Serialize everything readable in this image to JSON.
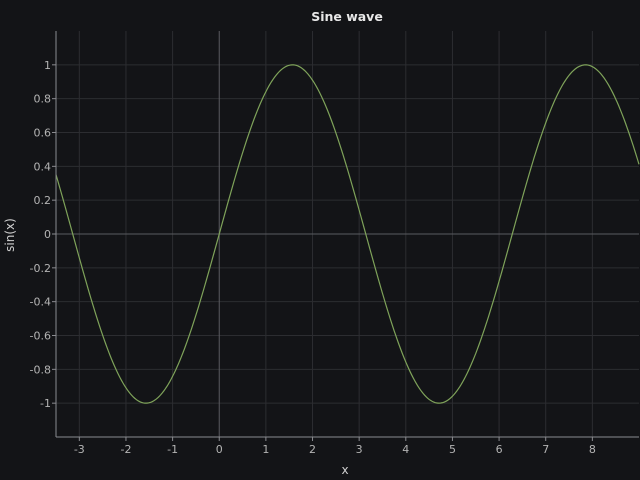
{
  "chart_data": {
    "type": "line",
    "title": "Sine wave",
    "xlabel": "x",
    "ylabel": "sin(x)",
    "xlim": [
      -3.5,
      9.0
    ],
    "ylim": [
      -1.2,
      1.2
    ],
    "x_ticks": [
      -3,
      -2,
      -1,
      0,
      1,
      2,
      3,
      4,
      5,
      6,
      7,
      8
    ],
    "x_tick_labels": [
      "-3",
      "-2",
      "-1",
      "0",
      "1",
      "2",
      "3",
      "4",
      "5",
      "6",
      "7",
      "8"
    ],
    "y_ticks": [
      -1,
      -0.8,
      -0.6,
      -0.4,
      -0.2,
      0,
      0.2,
      0.4,
      0.6,
      0.8,
      1
    ],
    "y_tick_labels": [
      "-1",
      "-0.8",
      "-0.6",
      "-0.4",
      "-0.2",
      "0",
      "0.2",
      "0.4",
      "0.6",
      "0.8",
      "1"
    ],
    "grid": true,
    "legend": "none",
    "series": [
      {
        "color": "#7fa35a",
        "x": [
          -3.5,
          -3.25,
          -3.0,
          -2.75,
          -2.5,
          -2.25,
          -2.0,
          -1.75,
          -1.5,
          -1.25,
          -1.0,
          -0.75,
          -0.5,
          -0.25,
          0.0,
          0.25,
          0.5,
          0.75,
          1.0,
          1.25,
          1.5,
          1.75,
          2.0,
          2.25,
          2.5,
          2.75,
          3.0,
          3.25,
          3.5,
          3.75,
          4.0,
          4.25,
          4.5,
          4.75,
          5.0,
          5.25,
          5.5,
          5.75,
          6.0,
          6.25,
          6.5,
          6.75,
          7.0,
          7.25,
          7.5,
          7.75,
          8.0,
          8.25,
          8.5,
          8.75,
          9.0
        ],
        "y": [
          0.351,
          0.108,
          -0.141,
          -0.382,
          -0.598,
          -0.778,
          -0.909,
          -0.984,
          -0.997,
          -0.949,
          -0.841,
          -0.682,
          -0.479,
          -0.247,
          0.0,
          0.247,
          0.479,
          0.682,
          0.841,
          0.949,
          0.997,
          0.984,
          0.909,
          0.778,
          0.598,
          0.382,
          0.141,
          -0.108,
          -0.351,
          -0.572,
          -0.757,
          -0.895,
          -0.978,
          -0.999,
          -0.959,
          -0.859,
          -0.706,
          -0.509,
          -0.279,
          -0.033,
          0.215,
          0.451,
          0.657,
          0.823,
          0.938,
          0.994,
          0.989,
          0.923,
          0.798,
          0.624,
          0.412
        ]
      }
    ]
  }
}
